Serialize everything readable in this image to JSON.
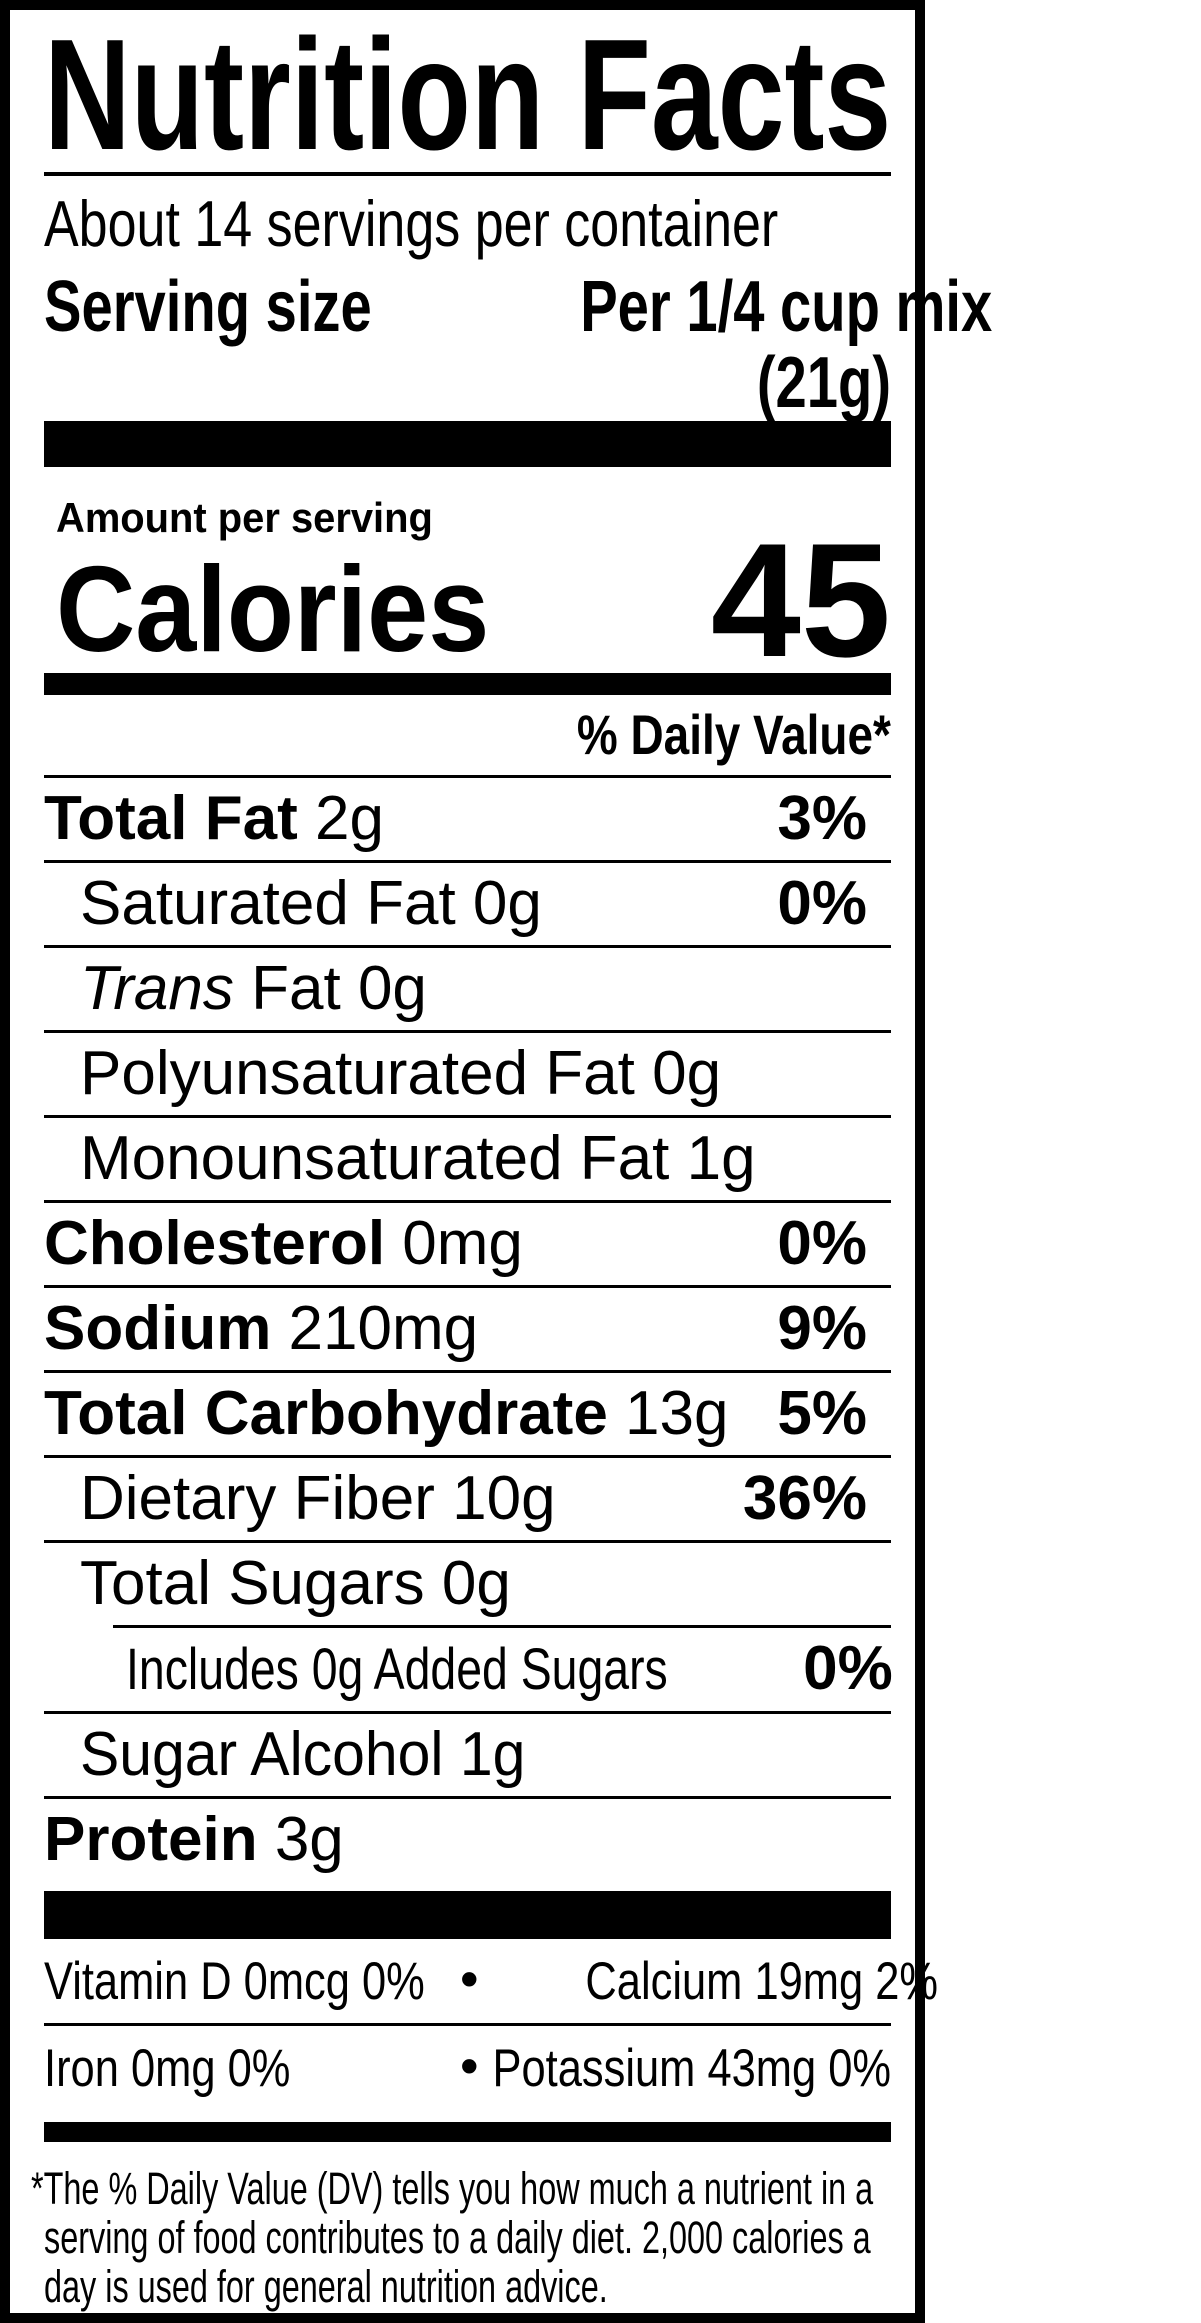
{
  "colors": {
    "text": "#000000",
    "background": "#ffffff",
    "border": "#000000"
  },
  "label": {
    "title": "Nutrition Facts",
    "servings_per_container": "About 14 servings per container",
    "serving_size_label": "Serving size",
    "serving_size_value": "Per 1/4 cup mix",
    "serving_size_weight": "(21g)",
    "amount_per_serving": "Amount per serving",
    "calories_label": "Calories",
    "calories_value": "45",
    "daily_value_header": "% Daily Value*",
    "nutrient_rows": [
      {
        "name": "Total Fat",
        "amount": "2g",
        "dv": "3%",
        "bold": true,
        "indent": 0
      },
      {
        "name": "Saturated Fat",
        "amount": "0g",
        "dv": "0%",
        "bold": false,
        "indent": 1
      },
      {
        "italic": "Trans",
        "name": "Fat",
        "amount": "0g",
        "dv": "",
        "bold": false,
        "indent": 1
      },
      {
        "name": "Polyunsaturated Fat",
        "amount": "0g",
        "dv": "",
        "bold": false,
        "indent": 1
      },
      {
        "name": "Monounsaturated Fat",
        "amount": "1g",
        "dv": "",
        "bold": false,
        "indent": 1
      },
      {
        "name": "Cholesterol",
        "amount": "0mg",
        "dv": "0%",
        "bold": true,
        "indent": 0
      },
      {
        "name": "Sodium",
        "amount": "210mg",
        "dv": "9%",
        "bold": true,
        "indent": 0
      },
      {
        "name": "Total Carbohydrate",
        "amount": "13g",
        "dv": "5%",
        "bold": true,
        "indent": 0
      },
      {
        "name": "Dietary Fiber",
        "amount": "10g",
        "dv": "36%",
        "bold": false,
        "indent": 1
      },
      {
        "name": "Total Sugars",
        "amount": "0g",
        "dv": "",
        "bold": false,
        "indent": 1
      },
      {
        "name": "Includes 0g Added Sugars",
        "amount": "",
        "dv": "0%",
        "bold": false,
        "indent": 2,
        "condensed": true,
        "rule_above_indented": true
      },
      {
        "name": "Sugar Alcohol",
        "amount": "1g",
        "dv": "",
        "bold": false,
        "indent": 1,
        "condensed": true
      },
      {
        "name": "Protein",
        "amount": "3g",
        "dv": "",
        "bold": true,
        "indent": 0
      }
    ],
    "micronutrients": {
      "bullet": "•",
      "rows": [
        {
          "left": "Vitamin D 0mcg 0%",
          "right": "Calcium 19mg 2%"
        },
        {
          "left": "Iron 0mg 0%",
          "right": "Potassium 43mg 0%"
        }
      ]
    },
    "footnote_lines": [
      "*The % Daily Value (DV) tells you how much a nutrient in a",
      "serving of food contributes to a daily diet. 2,000 calories a",
      "day is used for general nutrition advice."
    ]
  }
}
